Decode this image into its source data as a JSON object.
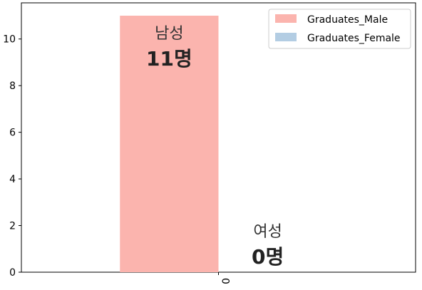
{
  "chart_data": {
    "type": "bar",
    "categories": [
      "0"
    ],
    "series": [
      {
        "name": "Graduates_Male",
        "values": [
          11
        ],
        "color": "#fbb4ae"
      },
      {
        "name": "Graduates_Female",
        "values": [
          0
        ],
        "color": "#b3cde3"
      }
    ],
    "ylim": [
      0,
      11.55
    ],
    "yticks": [
      0,
      2,
      4,
      6,
      8,
      10
    ],
    "grid": false,
    "legend_position": "top-right",
    "annotations": [
      {
        "series": "Graduates_Male",
        "name": "남성",
        "value": "11명"
      },
      {
        "series": "Graduates_Female",
        "name": "여성",
        "value": "0명"
      }
    ]
  }
}
